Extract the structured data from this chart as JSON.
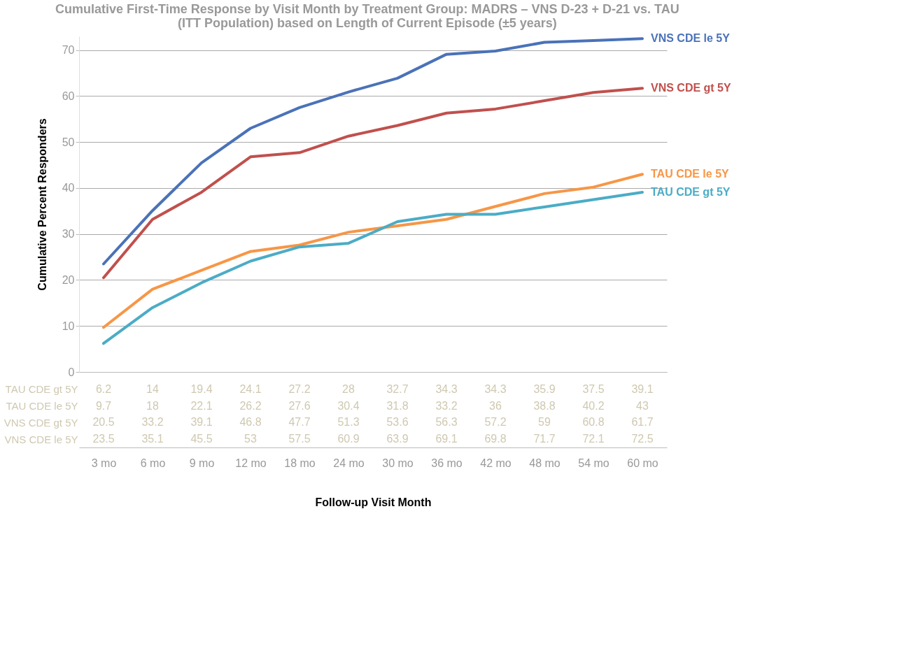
{
  "chart_data": {
    "type": "line",
    "title": "Cumulative First-Time Response by Visit Month by Treatment Group: MADRS – VNS D-23 + D-21 vs. TAU\n(ITT Population) based on Length of Current Episode (±5 years)",
    "xlabel": "Follow-up Visit Month",
    "ylabel": "Cumulative Percent Responders",
    "categories": [
      "3 mo",
      "6 mo",
      "9 mo",
      "12 mo",
      "18 mo",
      "24 mo",
      "30 mo",
      "36 mo",
      "42 mo",
      "48 mo",
      "54 mo",
      "60 mo"
    ],
    "series": [
      {
        "name": "VNS CDE le 5Y",
        "color": "#4a72b8",
        "values": [
          23.5,
          35.1,
          45.5,
          53,
          57.5,
          60.9,
          63.9,
          69.1,
          69.8,
          71.7,
          72.1,
          72.5
        ]
      },
      {
        "name": "VNS CDE gt 5Y",
        "color": "#c0504d",
        "values": [
          20.5,
          33.2,
          39.1,
          46.8,
          47.7,
          51.3,
          53.6,
          56.3,
          57.2,
          59,
          60.8,
          61.7
        ]
      },
      {
        "name": "TAU CDE le 5Y",
        "color": "#f79646",
        "values": [
          9.7,
          18,
          22.1,
          26.2,
          27.6,
          30.4,
          31.8,
          33.2,
          36,
          38.8,
          40.2,
          43
        ]
      },
      {
        "name": "TAU CDE gt 5Y",
        "color": "#4bacc6",
        "values": [
          6.2,
          14,
          19.4,
          24.1,
          27.2,
          28,
          32.7,
          34.3,
          34.3,
          35.9,
          37.5,
          39.1
        ]
      }
    ],
    "ylim": [
      0,
      73
    ],
    "yticks": [
      0,
      10,
      20,
      30,
      40,
      50,
      60,
      70
    ],
    "grid": "y",
    "legend": "right",
    "data_labels": true,
    "line_style": "solid",
    "marker": "none"
  }
}
